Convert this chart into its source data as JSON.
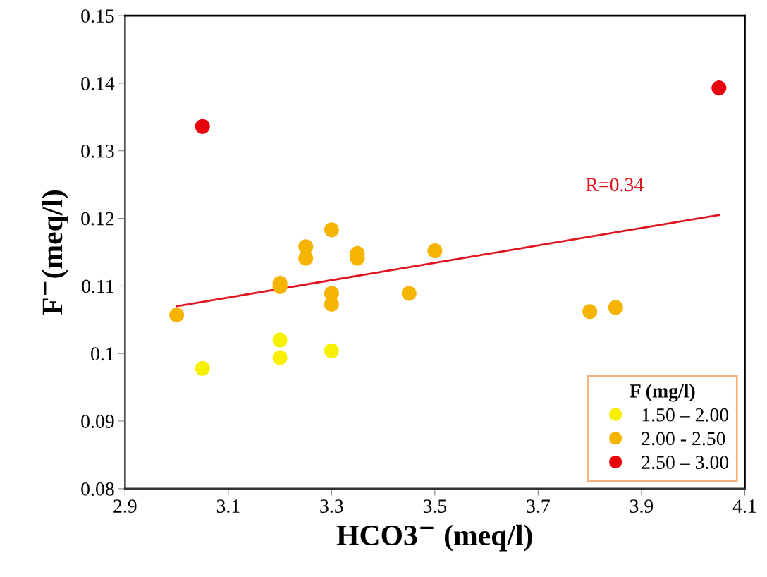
{
  "chart_data": {
    "type": "scatter",
    "xlabel": "HCO3$^{−}$ (meq/l)",
    "ylabel": "F$^{−}$(meq/l)",
    "legend_title": "F (mg/l)",
    "xlim": [
      2.9,
      4.1
    ],
    "xticks": [
      2.9,
      3.1,
      3.3,
      3.5,
      3.7,
      3.9,
      4.1
    ],
    "ylim": [
      0.08,
      0.15
    ],
    "yticks": [
      0.08,
      0.09,
      0.1,
      0.11,
      0.12,
      0.13,
      0.14,
      0.15
    ],
    "grid": false,
    "legend": "bottom right",
    "marker": "circle",
    "series": [
      {
        "name": "1.50 – 2.00",
        "color": "#f7f000",
        "x": [
          3.05,
          3.2,
          3.2,
          3.3
        ],
        "values": [
          0.0978,
          0.102,
          0.0994,
          0.1004
        ]
      },
      {
        "name": "2.00 - 2.50",
        "color": "#f5b400",
        "x": [
          3.0,
          3.2,
          3.2,
          3.25,
          3.25,
          3.3,
          3.3,
          3.3,
          3.35,
          3.35,
          3.45,
          3.5,
          3.8,
          3.85
        ],
        "values": [
          0.1057,
          0.1104,
          0.1099,
          0.1158,
          0.1141,
          0.1183,
          0.1089,
          0.1073,
          0.1148,
          0.1141,
          0.1089,
          0.1152,
          0.1062,
          0.1068
        ]
      },
      {
        "name": "2.50 – 3.00",
        "color": "#e8000b",
        "x": [
          3.05,
          4.05
        ],
        "values": [
          0.1336,
          0.1393
        ]
      },
      {
        "type": "line",
        "marker": "none",
        "color": "#e0141e",
        "x": [
          3.0,
          4.05
        ],
        "values": [
          0.107,
          0.1205
        ]
      }
    ],
    "annotations": [
      "R=0.34"
    ]
  }
}
